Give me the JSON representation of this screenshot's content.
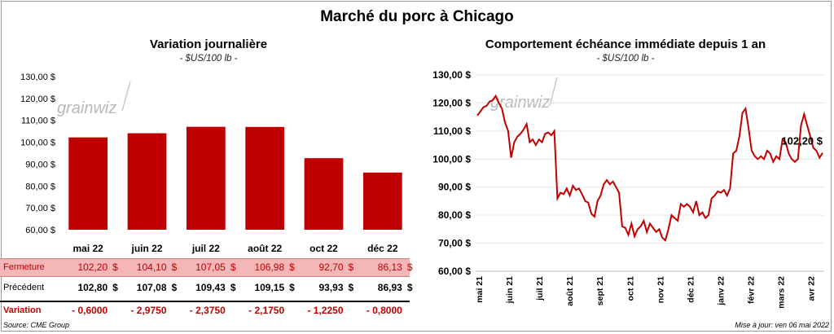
{
  "title": "Marché du porc à Chicago",
  "left_chart": {
    "title": "Variation  journalière",
    "unit": "- $US/100 lb -",
    "watermark": "grainwiz",
    "chart_data": {
      "type": "bar",
      "categories": [
        "mai 22",
        "juin 22",
        "juil 22",
        "août 22",
        "oct 22",
        "déc 22"
      ],
      "values": [
        102.2,
        104.1,
        107.05,
        106.98,
        92.7,
        86.13
      ],
      "ylim": [
        60,
        130
      ],
      "yticks": [
        "60,00 $",
        "70,00 $",
        "80,00 $",
        "90,00 $",
        "100,00 $",
        "110,00 $",
        "120,00 $",
        "130,00 $"
      ],
      "bar_color": "#c00000"
    }
  },
  "table": {
    "rows": [
      {
        "label": "Fermeture",
        "values": [
          "102,20",
          "104,10",
          "107,05",
          "106,98",
          "92,70",
          "86,13"
        ],
        "unit": "$"
      },
      {
        "label": "Précédent",
        "values": [
          "102,80",
          "107,08",
          "109,43",
          "109,15",
          "93,93",
          "86,93"
        ],
        "unit": "$"
      },
      {
        "label": "Variation",
        "values": [
          "- 0,6000",
          "- 2,9750",
          "- 2,3750",
          "- 2,1750",
          "- 1,2250",
          "- 0,8000"
        ],
        "unit": ""
      }
    ]
  },
  "right_chart": {
    "title": "Comportement  échéance immédiate depuis 1 an",
    "unit": "- $US/100 lb -",
    "watermark": "grainwiz",
    "last_value_label": "102,20 $",
    "chart_data": {
      "type": "line",
      "ylim": [
        60,
        130
      ],
      "yticks": [
        "60,00 $",
        "70,00 $",
        "80,00 $",
        "90,00 $",
        "100,00 $",
        "110,00 $",
        "120,00 $",
        "130,00 $"
      ],
      "x_tick_labels": [
        "mai 21",
        "juin 21",
        "juil 21",
        "août 21",
        "sept 21",
        "oct 21",
        "nov 21",
        "déc 21",
        "janv 22",
        "févr 22",
        "mars 22",
        "avr 22"
      ],
      "line_color": "#c00000",
      "series": [
        {
          "values": [
            115.5,
            117,
            118.5,
            119,
            120.5,
            121,
            122.5,
            120,
            118,
            113,
            110,
            100.5,
            106,
            108,
            109,
            110.5,
            112.5,
            106,
            107,
            105,
            107,
            106,
            109,
            109.5,
            108.5,
            110,
            86,
            88,
            87.5,
            89.5,
            87,
            90.5,
            89,
            89.5,
            87.5,
            85,
            84.5,
            80.5,
            79.5,
            85,
            87,
            91,
            92.5,
            91,
            92,
            90,
            88,
            76,
            75.5,
            73,
            77,
            72.5,
            75,
            76,
            78,
            74,
            77,
            75.5,
            74,
            75,
            72,
            71,
            75,
            80,
            79,
            78,
            84,
            83,
            84,
            83,
            81,
            85,
            80,
            81,
            79,
            80,
            86,
            87,
            88.5,
            88,
            89,
            87,
            89.5,
            102,
            103,
            108,
            116.5,
            118,
            111,
            103,
            101,
            100,
            101,
            100,
            103,
            102,
            99,
            101,
            100,
            107,
            106,
            102,
            100,
            99,
            100,
            112,
            116,
            112,
            108,
            104,
            103,
            100.5,
            102.2
          ]
        }
      ]
    }
  },
  "footer": {
    "source": "Source: CME Group",
    "updated": "Mise à jour: ven 06 mai 2022"
  }
}
